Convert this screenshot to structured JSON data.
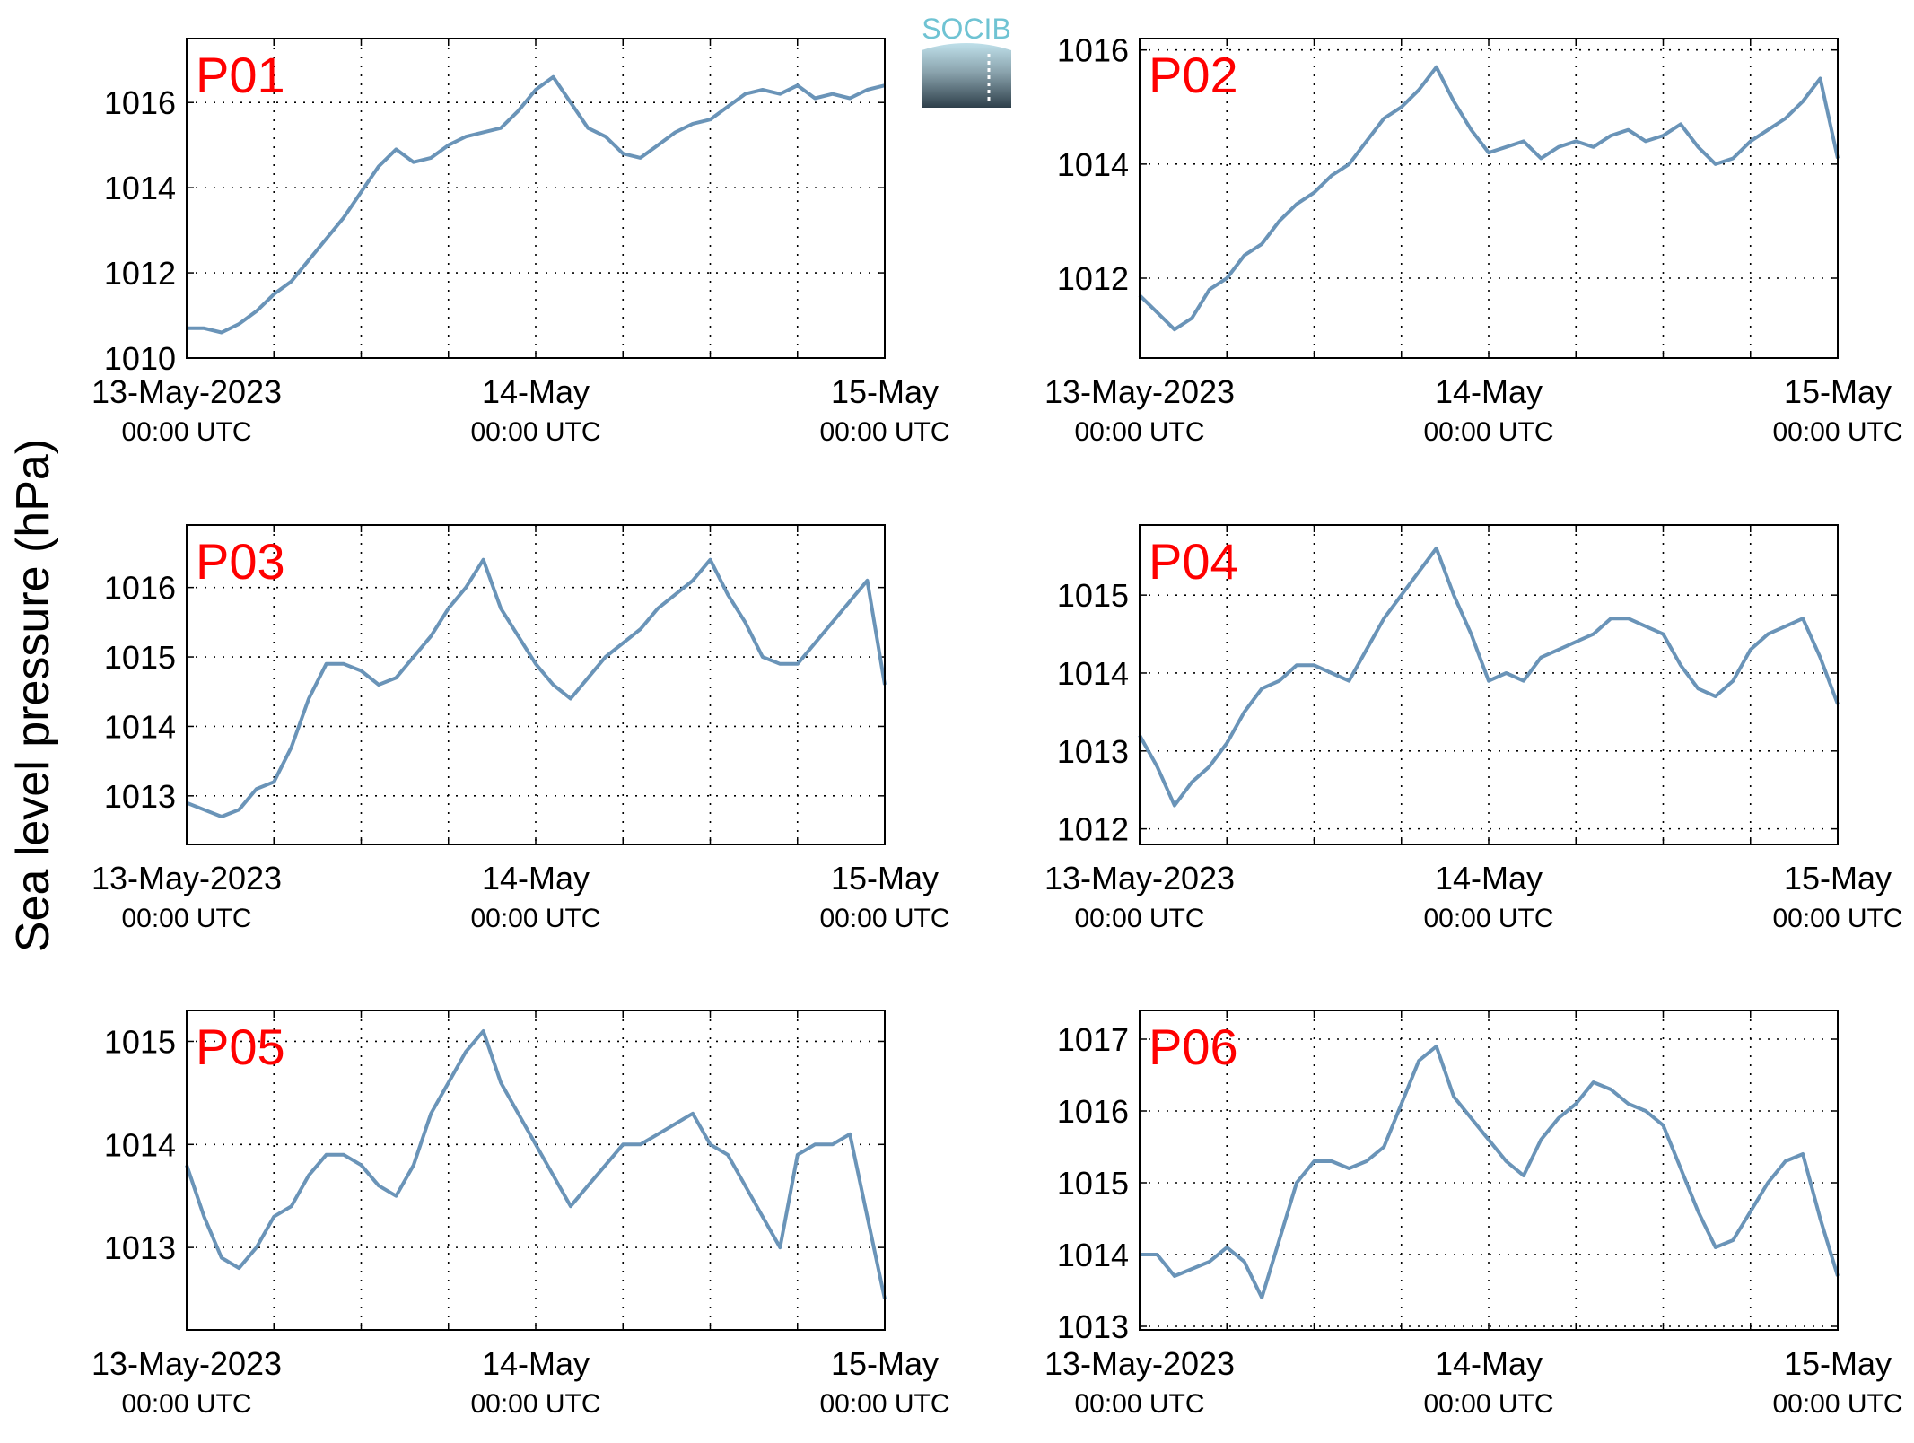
{
  "ylabel": "Sea level pressure (hPa)",
  "logo": {
    "text": "SOCIB",
    "color_top": "#6fc3d3",
    "color_bottom": "#2e3f4a"
  },
  "colors": {
    "line": "#6a94b8",
    "panel_label": "#ff0000",
    "grid": "#000000"
  },
  "x_ticks": [
    {
      "x": 0,
      "date": "13-May-2023",
      "time": "00:00 UTC"
    },
    {
      "x": 1,
      "date": "14-May",
      "time": "00:00 UTC"
    },
    {
      "x": 2,
      "date": "15-May",
      "time": "00:00 UTC"
    }
  ],
  "chart_data": [
    {
      "type": "line",
      "title": "P01",
      "x_unit": "days since 13-May-2023 00:00 UTC",
      "xlim": [
        0,
        2
      ],
      "ylim": [
        1010,
        1017.5
      ],
      "yticks": [
        1010,
        1012,
        1014,
        1016
      ],
      "x": [
        0,
        0.05,
        0.1,
        0.15,
        0.2,
        0.25,
        0.3,
        0.35,
        0.4,
        0.45,
        0.5,
        0.55,
        0.6,
        0.65,
        0.7,
        0.75,
        0.8,
        0.85,
        0.9,
        0.95,
        1.0,
        1.05,
        1.1,
        1.15,
        1.2,
        1.25,
        1.3,
        1.35,
        1.4,
        1.45,
        1.5,
        1.55,
        1.6,
        1.65,
        1.7,
        1.75,
        1.8,
        1.85,
        1.9,
        1.95,
        2.0
      ],
      "y": [
        1010.7,
        1010.7,
        1010.6,
        1010.8,
        1011.1,
        1011.5,
        1011.8,
        1012.3,
        1012.8,
        1013.3,
        1013.9,
        1014.5,
        1014.9,
        1014.6,
        1014.7,
        1015.0,
        1015.2,
        1015.3,
        1015.4,
        1015.8,
        1016.3,
        1016.6,
        1016.0,
        1015.4,
        1015.2,
        1014.8,
        1014.7,
        1015.0,
        1015.3,
        1015.5,
        1015.6,
        1015.9,
        1016.2,
        1016.3,
        1016.2,
        1016.4,
        1016.1,
        1016.2,
        1016.1,
        1016.3,
        1016.4
      ]
    },
    {
      "type": "line",
      "title": "P02",
      "x_unit": "days since 13-May-2023 00:00 UTC",
      "xlim": [
        0,
        2
      ],
      "ylim": [
        1010.6,
        1016.2
      ],
      "yticks": [
        1012,
        1014,
        1016
      ],
      "x": [
        0,
        0.05,
        0.1,
        0.15,
        0.2,
        0.25,
        0.3,
        0.35,
        0.4,
        0.45,
        0.5,
        0.55,
        0.6,
        0.65,
        0.7,
        0.75,
        0.8,
        0.85,
        0.9,
        0.95,
        1.0,
        1.05,
        1.1,
        1.15,
        1.2,
        1.25,
        1.3,
        1.35,
        1.4,
        1.45,
        1.5,
        1.55,
        1.6,
        1.65,
        1.7,
        1.75,
        1.8,
        1.85,
        1.9,
        1.95,
        2.0
      ],
      "y": [
        1011.7,
        1011.4,
        1011.1,
        1011.3,
        1011.8,
        1012.0,
        1012.4,
        1012.6,
        1013.0,
        1013.3,
        1013.5,
        1013.8,
        1014.0,
        1014.4,
        1014.8,
        1015.0,
        1015.3,
        1015.7,
        1015.1,
        1014.6,
        1014.2,
        1014.3,
        1014.4,
        1014.1,
        1014.3,
        1014.4,
        1014.3,
        1014.5,
        1014.6,
        1014.4,
        1014.5,
        1014.7,
        1014.3,
        1014.0,
        1014.1,
        1014.4,
        1014.6,
        1014.8,
        1015.1,
        1015.5,
        1014.1
      ]
    },
    {
      "type": "line",
      "title": "P03",
      "x_unit": "days since 13-May-2023 00:00 UTC",
      "xlim": [
        0,
        2
      ],
      "ylim": [
        1012.3,
        1016.9
      ],
      "yticks": [
        1013,
        1014,
        1015,
        1016
      ],
      "x": [
        0,
        0.05,
        0.1,
        0.15,
        0.2,
        0.25,
        0.3,
        0.35,
        0.4,
        0.45,
        0.5,
        0.55,
        0.6,
        0.65,
        0.7,
        0.75,
        0.8,
        0.85,
        0.9,
        0.95,
        1.0,
        1.05,
        1.1,
        1.15,
        1.2,
        1.25,
        1.3,
        1.35,
        1.4,
        1.45,
        1.5,
        1.55,
        1.6,
        1.65,
        1.7,
        1.75,
        1.8,
        1.85,
        1.9,
        1.95,
        2.0
      ],
      "y": [
        1012.9,
        1012.8,
        1012.7,
        1012.8,
        1013.1,
        1013.2,
        1013.7,
        1014.4,
        1014.9,
        1014.9,
        1014.8,
        1014.6,
        1014.7,
        1015.0,
        1015.3,
        1015.7,
        1016.0,
        1016.4,
        1015.7,
        1015.3,
        1014.9,
        1014.6,
        1014.4,
        1014.7,
        1015.0,
        1015.2,
        1015.4,
        1015.7,
        1015.9,
        1016.1,
        1016.4,
        1015.9,
        1015.5,
        1015.0,
        1014.9,
        1014.9,
        1015.2,
        1015.5,
        1015.8,
        1016.1,
        1014.6
      ]
    },
    {
      "type": "line",
      "title": "P04",
      "x_unit": "days since 13-May-2023 00:00 UTC",
      "xlim": [
        0,
        2
      ],
      "ylim": [
        1011.8,
        1015.9
      ],
      "yticks": [
        1012,
        1013,
        1014,
        1015
      ],
      "x": [
        0,
        0.05,
        0.1,
        0.15,
        0.2,
        0.25,
        0.3,
        0.35,
        0.4,
        0.45,
        0.5,
        0.55,
        0.6,
        0.65,
        0.7,
        0.75,
        0.8,
        0.85,
        0.9,
        0.95,
        1.0,
        1.05,
        1.1,
        1.15,
        1.2,
        1.25,
        1.3,
        1.35,
        1.4,
        1.45,
        1.5,
        1.55,
        1.6,
        1.65,
        1.7,
        1.75,
        1.8,
        1.85,
        1.9,
        1.95,
        2.0
      ],
      "y": [
        1013.2,
        1012.8,
        1012.3,
        1012.6,
        1012.8,
        1013.1,
        1013.5,
        1013.8,
        1013.9,
        1014.1,
        1014.1,
        1014.0,
        1013.9,
        1014.3,
        1014.7,
        1015.0,
        1015.3,
        1015.6,
        1015.0,
        1014.5,
        1013.9,
        1014.0,
        1013.9,
        1014.2,
        1014.3,
        1014.4,
        1014.5,
        1014.7,
        1014.7,
        1014.6,
        1014.5,
        1014.1,
        1013.8,
        1013.7,
        1013.9,
        1014.3,
        1014.5,
        1014.6,
        1014.7,
        1014.2,
        1013.6
      ]
    },
    {
      "type": "line",
      "title": "P05",
      "x_unit": "days since 13-May-2023 00:00 UTC",
      "xlim": [
        0,
        2
      ],
      "ylim": [
        1012.2,
        1015.3
      ],
      "yticks": [
        1013,
        1014,
        1015
      ],
      "x": [
        0,
        0.05,
        0.1,
        0.15,
        0.2,
        0.25,
        0.3,
        0.35,
        0.4,
        0.45,
        0.5,
        0.55,
        0.6,
        0.65,
        0.7,
        0.75,
        0.8,
        0.85,
        0.9,
        0.95,
        1.0,
        1.05,
        1.1,
        1.15,
        1.2,
        1.25,
        1.3,
        1.35,
        1.4,
        1.45,
        1.5,
        1.55,
        1.6,
        1.65,
        1.7,
        1.75,
        1.8,
        1.85,
        1.9,
        1.95,
        2.0
      ],
      "y": [
        1013.8,
        1013.3,
        1012.9,
        1012.8,
        1013.0,
        1013.3,
        1013.4,
        1013.7,
        1013.9,
        1013.9,
        1013.8,
        1013.6,
        1013.5,
        1013.8,
        1014.3,
        1014.6,
        1014.9,
        1015.1,
        1014.6,
        1014.3,
        1014.0,
        1013.7,
        1013.4,
        1013.6,
        1013.8,
        1014.0,
        1014.0,
        1014.1,
        1014.2,
        1014.3,
        1014.0,
        1013.9,
        1013.6,
        1013.3,
        1013.0,
        1013.9,
        1014.0,
        1014.0,
        1014.1,
        1013.3,
        1012.5
      ]
    },
    {
      "type": "line",
      "title": "P06",
      "x_unit": "days since 13-May-2023 00:00 UTC",
      "xlim": [
        0,
        2
      ],
      "ylim": [
        1012.95,
        1017.4
      ],
      "yticks": [
        1013,
        1014,
        1015,
        1016,
        1017
      ],
      "x": [
        0,
        0.05,
        0.1,
        0.15,
        0.2,
        0.25,
        0.3,
        0.35,
        0.4,
        0.45,
        0.5,
        0.55,
        0.6,
        0.65,
        0.7,
        0.75,
        0.8,
        0.85,
        0.9,
        0.95,
        1.0,
        1.05,
        1.1,
        1.15,
        1.2,
        1.25,
        1.3,
        1.35,
        1.4,
        1.45,
        1.5,
        1.55,
        1.6,
        1.65,
        1.7,
        1.75,
        1.8,
        1.85,
        1.9,
        1.95,
        2.0
      ],
      "y": [
        1014.0,
        1014.0,
        1013.7,
        1013.8,
        1013.9,
        1014.1,
        1013.9,
        1013.4,
        1014.2,
        1015.0,
        1015.3,
        1015.3,
        1015.2,
        1015.3,
        1015.5,
        1016.1,
        1016.7,
        1016.9,
        1016.2,
        1015.9,
        1015.6,
        1015.3,
        1015.1,
        1015.6,
        1015.9,
        1016.1,
        1016.4,
        1016.3,
        1016.1,
        1016.0,
        1015.8,
        1015.2,
        1014.6,
        1014.1,
        1014.2,
        1014.6,
        1015.0,
        1015.3,
        1015.4,
        1014.5,
        1013.7
      ]
    }
  ]
}
